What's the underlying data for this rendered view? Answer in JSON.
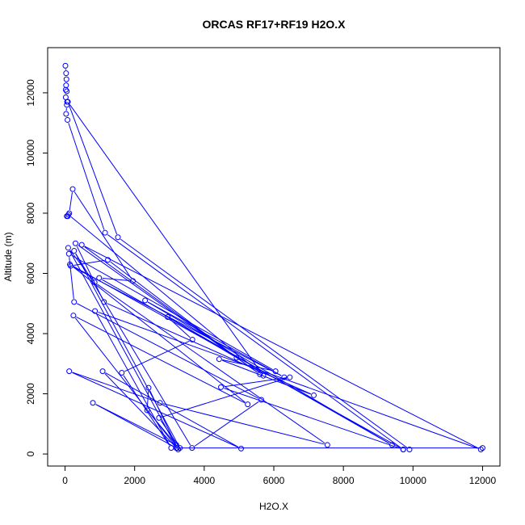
{
  "chart_data": {
    "type": "line",
    "title": "ORCAS RF17+RF19 H2O.X",
    "xlabel": "H2O.X",
    "ylabel": "Altitude (m)",
    "xlim": [
      -500,
      12500
    ],
    "ylim": [
      -400,
      13500
    ],
    "xticks": [
      0,
      2000,
      4000,
      6000,
      8000,
      10000,
      12000
    ],
    "yticks": [
      0,
      2000,
      4000,
      6000,
      8000,
      10000,
      12000
    ],
    "xtick_labels": [
      "0",
      "2000",
      "4000",
      "6000",
      "8000",
      "10000",
      "12000"
    ],
    "ytick_labels": [
      "0",
      "2000",
      "4000",
      "6000",
      "8000",
      "10000",
      "12000"
    ],
    "grid": false,
    "marker": "open-circle",
    "color": "#0000ff",
    "series": [
      {
        "points": [
          [
            10,
            12900
          ],
          [
            30,
            12650
          ],
          [
            40,
            12450
          ],
          [
            30,
            12250
          ],
          [
            20,
            12100
          ],
          [
            50,
            12050
          ],
          [
            20,
            11850
          ],
          [
            60,
            11700
          ],
          [
            50,
            11600
          ],
          [
            30,
            11300
          ],
          [
            70,
            11100
          ],
          [
            1150,
            7350
          ],
          [
            9720,
            150
          ],
          [
            9900,
            150
          ],
          [
            1520,
            7200
          ],
          [
            80,
            11700
          ],
          [
            5700,
            2600
          ],
          [
            100,
            7950
          ],
          [
            80,
            7900
          ],
          [
            50,
            7900
          ],
          [
            120,
            8000
          ],
          [
            220,
            8800
          ],
          [
            1950,
            5750
          ],
          [
            980,
            5850
          ],
          [
            9400,
            300
          ],
          [
            2300,
            5100
          ],
          [
            6300,
            2550
          ],
          [
            160,
            6250
          ],
          [
            1230,
            6450
          ],
          [
            4930,
            3200
          ],
          [
            2950,
            4550
          ],
          [
            3660,
            3800
          ],
          [
            1630,
            2700
          ],
          [
            3050,
            200
          ],
          [
            860,
            4750
          ],
          [
            11950,
            150
          ],
          [
            480,
            6950
          ],
          [
            5600,
            2650
          ],
          [
            300,
            7000
          ],
          [
            1120,
            5050
          ],
          [
            7150,
            1950
          ],
          [
            4430,
            3150
          ],
          [
            6050,
            2750
          ],
          [
            110,
            6650
          ],
          [
            260,
            5050
          ],
          [
            5640,
            1800
          ],
          [
            3650,
            200
          ],
          [
            260,
            6750
          ],
          [
            3300,
            200
          ],
          [
            2700,
            1200
          ],
          [
            6460,
            2550
          ],
          [
            4480,
            2220
          ],
          [
            9720,
            150
          ],
          [
            140,
            6300
          ],
          [
            5250,
            1650
          ],
          [
            240,
            4600
          ],
          [
            3220,
            200
          ],
          [
            90,
            6850
          ],
          [
            850,
            5700
          ],
          [
            7540,
            300
          ],
          [
            2730,
            1700
          ],
          [
            120,
            2750
          ],
          [
            5060,
            180
          ],
          [
            1080,
            2750
          ],
          [
            3250,
            150
          ],
          [
            2400,
            2200
          ],
          [
            2360,
            1450
          ],
          [
            3200,
            300
          ],
          [
            800,
            1700
          ],
          [
            3200,
            200
          ],
          [
            12000,
            200
          ]
        ]
      }
    ]
  }
}
